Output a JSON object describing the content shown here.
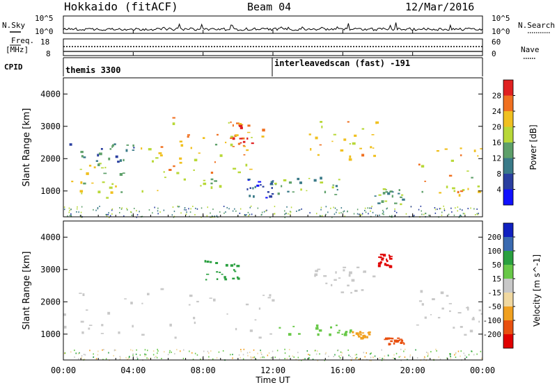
{
  "header": {
    "radar": "Hokkaido (fitACF)",
    "beam": "Beam 04",
    "date": "12/Mar/2016"
  },
  "top_strips": {
    "nsky_label": "N.Sky",
    "nsky_ticks": [
      "10^5",
      "10^0"
    ],
    "nsearch_label": "N.Search",
    "nsearch_ticks": [
      "10^5",
      "10^0"
    ],
    "freq_label": "Freq.",
    "freq_unit": "[MHz]",
    "freq_ticks": [
      "18",
      "8"
    ],
    "nave_label": "Nave",
    "nave_ticks": [
      "60",
      "0"
    ],
    "cpid_label": "CPID",
    "cpid_segments": [
      {
        "name": "themis 3300",
        "start_hour": 0,
        "end_hour": 12
      },
      {
        "name": "interleavedscan (fast) -191",
        "start_hour": 12,
        "end_hour": 24
      }
    ]
  },
  "chart_data": [
    {
      "type": "heatmap",
      "title": "",
      "xlabel": "",
      "ylabel": "Slant Range [km]",
      "xlim": [
        0,
        24
      ],
      "ylim": [
        200,
        4500
      ],
      "yticks": [
        1000,
        2000,
        3000,
        4000
      ],
      "colorbar": {
        "label": "Power [dB]",
        "levels": [
          0,
          4,
          8,
          12,
          16,
          20,
          24,
          28,
          32
        ],
        "tick_labels": [
          "4",
          "8",
          "12",
          "16",
          "20",
          "24",
          "28"
        ],
        "colors": [
          "#1010ff",
          "#2a3fa0",
          "#3a7a88",
          "#5ea06a",
          "#b8d838",
          "#f0c020",
          "#f07020",
          "#e02020"
        ]
      },
      "echo_regions": [
        {
          "t0": 0.0,
          "t1": 4.0,
          "r0": 800,
          "r1": 1900,
          "level": 18
        },
        {
          "t0": 4.0,
          "t1": 9.0,
          "r0": 800,
          "r1": 2500,
          "level": 20
        },
        {
          "t0": 6.0,
          "t1": 11.5,
          "r0": 1500,
          "r1": 3300,
          "level": 22
        },
        {
          "t0": 9.5,
          "t1": 10.8,
          "r0": 2400,
          "r1": 3200,
          "level": 28
        },
        {
          "t0": 0.3,
          "t1": 4.0,
          "r0": 1900,
          "r1": 2500,
          "level": 10
        },
        {
          "t0": 10.5,
          "t1": 12.0,
          "r0": 800,
          "r1": 1400,
          "level": 6
        },
        {
          "t0": 12.0,
          "t1": 16.0,
          "r0": 900,
          "r1": 1500,
          "level": 14
        },
        {
          "t0": 13.8,
          "t1": 18.0,
          "r0": 2000,
          "r1": 3200,
          "level": 22
        },
        {
          "t0": 17.8,
          "t1": 19.5,
          "r0": 600,
          "r1": 1100,
          "level": 14
        },
        {
          "t0": 20.3,
          "t1": 24.0,
          "r0": 900,
          "r1": 2400,
          "level": 20
        }
      ]
    },
    {
      "type": "heatmap",
      "title": "",
      "xlabel": "Time UT",
      "ylabel": "Slant Range [km]",
      "xlim": [
        0,
        24
      ],
      "ylim": [
        200,
        4500
      ],
      "xtick_labels": [
        "00:00",
        "04:00",
        "08:00",
        "12:00",
        "16:00",
        "20:00",
        "00:00"
      ],
      "yticks": [
        1000,
        2000,
        3000,
        4000
      ],
      "colorbar": {
        "label": "Velocity [m s^-1]",
        "levels": [
          -300,
          -200,
          -100,
          -50,
          -15,
          15,
          50,
          100,
          200,
          300
        ],
        "tick_labels": [
          "200",
          "100",
          "50",
          "15",
          "-15",
          "-50",
          "-100",
          "-200"
        ],
        "colors": [
          "#e00000",
          "#e85010",
          "#f0a020",
          "#f0d8a0",
          "#c8c8c8",
          "#68c848",
          "#2aa040",
          "#3a6ab0",
          "#1020c0"
        ]
      },
      "echo_regions": [
        {
          "t0": 0.0,
          "t1": 12.0,
          "r0": 900,
          "r1": 2500,
          "level": 0
        },
        {
          "t0": 8.0,
          "t1": 10.0,
          "r0": 2700,
          "r1": 3300,
          "level": 60
        },
        {
          "t0": 12.3,
          "t1": 16.5,
          "r0": 1000,
          "r1": 1300,
          "level": 40
        },
        {
          "t0": 14.0,
          "t1": 18.0,
          "r0": 2300,
          "r1": 3100,
          "level": 0
        },
        {
          "t0": 16.5,
          "t1": 17.5,
          "r0": 900,
          "r1": 1100,
          "level": -60
        },
        {
          "t0": 18.0,
          "t1": 18.7,
          "r0": 3100,
          "r1": 3500,
          "level": -250
        },
        {
          "t0": 18.3,
          "t1": 19.5,
          "r0": 700,
          "r1": 900,
          "level": -120
        },
        {
          "t0": 20.0,
          "t1": 24.0,
          "r0": 1000,
          "r1": 2400,
          "level": 0
        }
      ]
    }
  ]
}
